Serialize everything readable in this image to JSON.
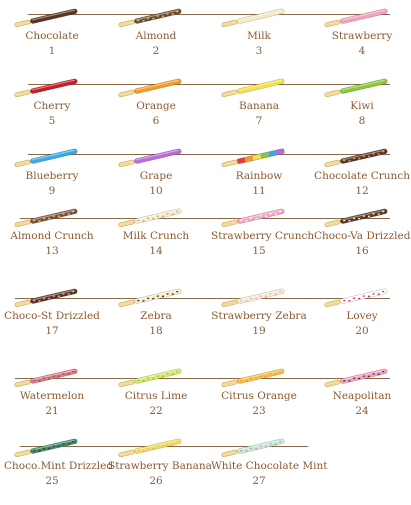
{
  "items": [
    {
      "name": "Chocolate",
      "number": "1",
      "coating": "#5a3520",
      "accent": ""
    },
    {
      "name": "Almond",
      "number": "2",
      "coating": "#6b4a2e",
      "accent": "#d8b98a"
    },
    {
      "name": "Milk",
      "number": "3",
      "coating": "#f3ecc2",
      "accent": ""
    },
    {
      "name": "Strawberry",
      "number": "4",
      "coating": "#f5a0c0",
      "accent": ""
    },
    {
      "name": "Cherry",
      "number": "5",
      "coating": "#c81a2a",
      "accent": ""
    },
    {
      "name": "Orange",
      "number": "6",
      "coating": "#f39a2a",
      "accent": ""
    },
    {
      "name": "Banana",
      "number": "7",
      "coating": "#f3e24a",
      "accent": ""
    },
    {
      "name": "Kiwi",
      "number": "8",
      "coating": "#8cc63a",
      "accent": ""
    },
    {
      "name": "Blueberry",
      "number": "9",
      "coating": "#3aa8e8",
      "accent": ""
    },
    {
      "name": "Grape",
      "number": "10",
      "coating": "#b86ad8",
      "accent": ""
    },
    {
      "name": "Rainbow",
      "number": "11",
      "coating": "rainbow",
      "accent": ""
    },
    {
      "name": "Chocolate Crunch",
      "number": "12",
      "coating": "#5a3520",
      "accent": "#c9a77a"
    },
    {
      "name": "Almond Crunch",
      "number": "13",
      "coating": "#7a5232",
      "accent": "#e0c79a"
    },
    {
      "name": "Milk Crunch",
      "number": "14",
      "coating": "#f6efd2",
      "accent": "#c9a77a"
    },
    {
      "name": "Strawberry Crunch",
      "number": "15",
      "coating": "#f5a0c0",
      "accent": "#ffffff"
    },
    {
      "name": "Choco-Va Drizzled",
      "number": "16",
      "coating": "#5a3520",
      "accent": "#f6efd2"
    },
    {
      "name": "Choco-St Drizzled",
      "number": "17",
      "coating": "#5a3520",
      "accent": "#f5a0c0"
    },
    {
      "name": "Zebra",
      "number": "18",
      "coating": "#f6efd2",
      "accent": "#5a3520"
    },
    {
      "name": "Strawberry Zebra",
      "number": "19",
      "coating": "#f6efd2",
      "accent": "#f5a0c0"
    },
    {
      "name": "Lovey",
      "number": "20",
      "coating": "#ffffff",
      "accent": "#e03040"
    },
    {
      "name": "Watermelon",
      "number": "21",
      "coating": "#f0708a",
      "accent": "#2a8a3a"
    },
    {
      "name": "Citrus Lime",
      "number": "22",
      "coating": "#d8ec6a",
      "accent": "#8cc63a"
    },
    {
      "name": "Citrus Orange",
      "number": "23",
      "coating": "#f8c048",
      "accent": "#f39a2a"
    },
    {
      "name": "Neapolitan",
      "number": "24",
      "coating": "#f5a0c0",
      "accent": "#5a3520"
    },
    {
      "name": "Choco.Mint Drizzled",
      "number": "25",
      "coating": "#3a8a6a",
      "accent": "#5a3520"
    },
    {
      "name": "Strawberry Banana",
      "number": "26",
      "coating": "#f3e24a",
      "accent": "#f5a0c0"
    },
    {
      "name": "White Chocolate Mint",
      "number": "27",
      "coating": "#bff0d8",
      "accent": "#e08aa8"
    }
  ],
  "colors": {
    "biscuit": "#f3dc9a",
    "biscuit_edge": "#c9a765",
    "label": "#8b5a33",
    "shelf": "#8b6a4a"
  }
}
